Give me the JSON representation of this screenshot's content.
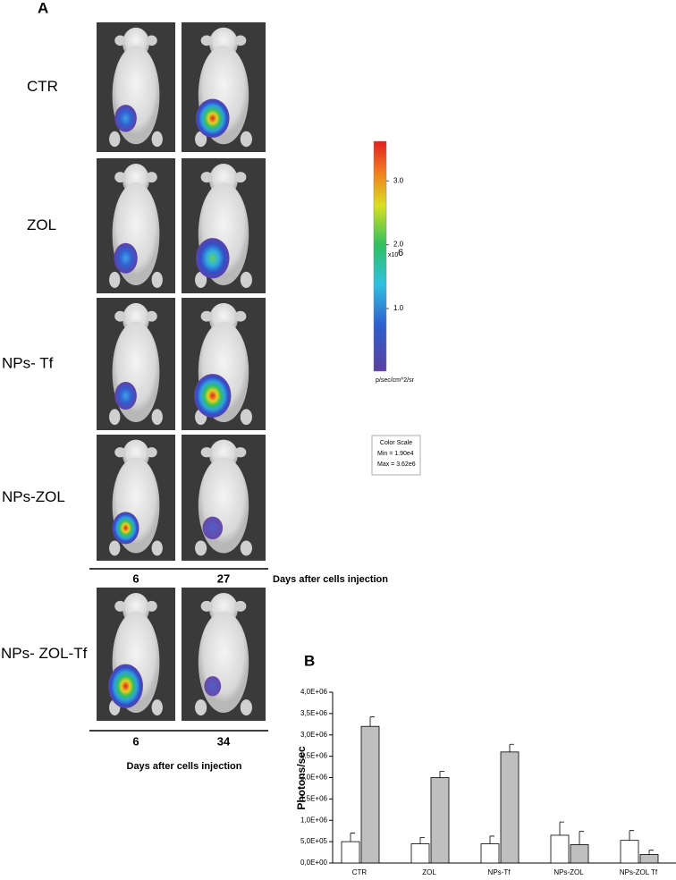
{
  "panel_a": {
    "label": "A",
    "rows": [
      "CTR",
      "ZOL",
      "NPs- Tf",
      "NPs-ZOL",
      "NPs- ZOL-Tf"
    ],
    "days_top": [
      "6",
      "27"
    ],
    "days_top_caption": "Days after cells injection",
    "days_bottom": [
      "6",
      "34"
    ],
    "days_bottom_caption": "Days after cells injection",
    "colorbar": {
      "lim": [
        0.019,
        3.62
      ],
      "ticks": [
        {
          "value": 1,
          "label": "1.0"
        },
        {
          "value": 2,
          "label": "2.0"
        },
        {
          "value": 3,
          "label": "3.0"
        }
      ],
      "multiplier": "x10",
      "exponent": "6",
      "unit": "p/sec/cm^2/sr"
    },
    "color_scale_box": [
      "Color Scale",
      "Min = 1.90e4",
      "Max = 3.62e6"
    ]
  },
  "chart_data": {
    "type": "bar",
    "panel_label": "B",
    "ylabel": "Photons/sec",
    "categories": [
      "CTR",
      "ZOL",
      "NPs-Tf",
      "NPs-ZOL",
      "NPs-ZOL Tf"
    ],
    "series": [
      {
        "color": "#ffffff",
        "values": [
          500000,
          450000,
          450000,
          650000,
          530000
        ],
        "errors": [
          200000,
          150000,
          180000,
          310000,
          230000
        ]
      },
      {
        "color": "#bfbfbf",
        "values": [
          3200000,
          2000000,
          2600000,
          430000,
          200000
        ],
        "errors": [
          220000,
          150000,
          180000,
          310000,
          100000
        ]
      }
    ],
    "ylim": [
      0,
      4000000
    ],
    "yticks": [
      {
        "value": 0,
        "label": "0,0E+00"
      },
      {
        "value": 500000,
        "label": "5,0E+05"
      },
      {
        "value": 1000000,
        "label": "1,0E+06"
      },
      {
        "value": 1500000,
        "label": "1,5E+06"
      },
      {
        "value": 2000000,
        "label": "2,0E+06"
      },
      {
        "value": 2500000,
        "label": "2,5E+06"
      },
      {
        "value": 3000000,
        "label": "3,0E+06"
      },
      {
        "value": 3500000,
        "label": "3,5E+06"
      },
      {
        "value": 4000000,
        "label": "4,0E+06"
      }
    ],
    "grid": false
  }
}
